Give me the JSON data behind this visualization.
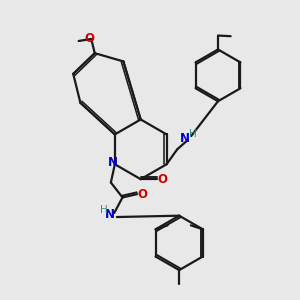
{
  "bg_color": "#e8e8e8",
  "bond_color": "#1a1a1a",
  "N_color": "#0000cc",
  "O_color": "#cc0000",
  "H_color": "#3a8a8a",
  "line_width": 1.6,
  "figsize": [
    3.0,
    3.0
  ],
  "dpi": 100,
  "xlim": [
    0.5,
    9.5
  ],
  "ylim": [
    1.2,
    10.2
  ]
}
